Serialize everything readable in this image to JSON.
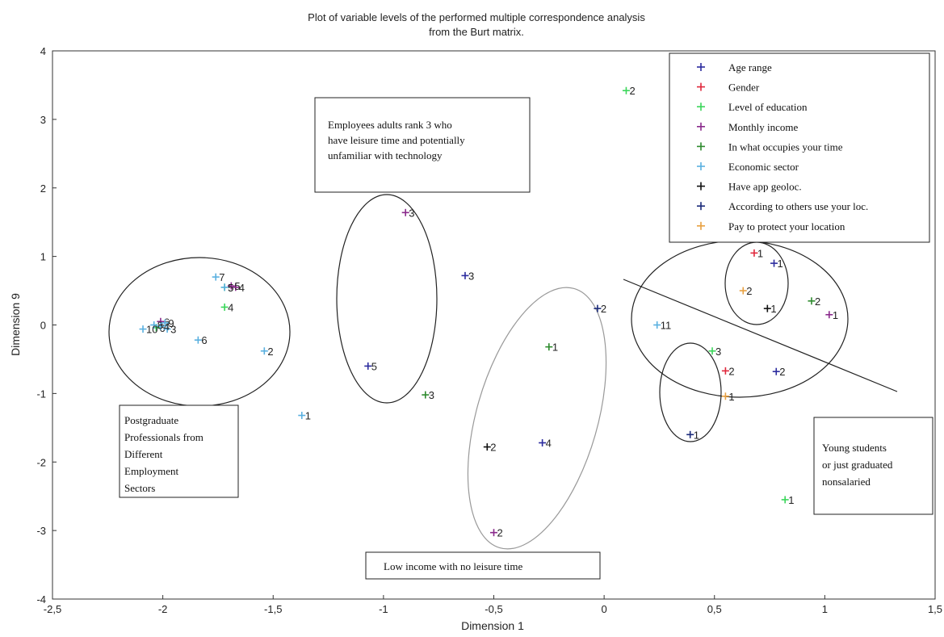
{
  "chart_data": {
    "type": "scatter",
    "title": "Plot of variable levels of the performed multiple correspondence analysis",
    "subtitle": "from the Burt matrix.",
    "xlabel": "Dimension 1",
    "ylabel": "Dimension 9",
    "xlim": [
      -2.5,
      1.5
    ],
    "ylim": [
      -4,
      4
    ],
    "xticks": [
      "-2,5",
      "-2",
      "-1,5",
      "-1",
      "-0,5",
      "0",
      "0,5",
      "1",
      "1,5"
    ],
    "yticks": [
      "4",
      "3",
      "2",
      "1",
      "0",
      "-1",
      "-2",
      "-3",
      "-4"
    ],
    "grid": false,
    "legend_position": "top-right",
    "series": [
      {
        "name": "Age range",
        "color": "#2b2b9e",
        "points": [
          {
            "x": 0.77,
            "y": 0.9,
            "label": "1"
          },
          {
            "x": 0.78,
            "y": -0.68,
            "label": "2"
          },
          {
            "x": -0.63,
            "y": 0.72,
            "label": "3"
          },
          {
            "x": -0.28,
            "y": -1.72,
            "label": "4"
          },
          {
            "x": -1.07,
            "y": -0.6,
            "label": "5"
          }
        ]
      },
      {
        "name": "Gender",
        "color": "#e0283c",
        "points": [
          {
            "x": 0.68,
            "y": 1.05,
            "label": "1"
          },
          {
            "x": 0.55,
            "y": -0.67,
            "label": "2"
          }
        ]
      },
      {
        "name": "Level of education",
        "color": "#3ad65a",
        "points": [
          {
            "x": 0.82,
            "y": -2.55,
            "label": "1"
          },
          {
            "x": 0.1,
            "y": 3.42,
            "label": "2"
          },
          {
            "x": 0.49,
            "y": -0.38,
            "label": "3"
          },
          {
            "x": -1.72,
            "y": 0.26,
            "label": "4"
          },
          {
            "x": -1.72,
            "y": 0.55,
            "label": "5"
          },
          {
            "x": -2.03,
            "y": -0.04,
            "label": "6"
          }
        ]
      },
      {
        "name": "Monthly income",
        "color": "#8a2a8c",
        "points": [
          {
            "x": 1.02,
            "y": 0.15,
            "label": "1"
          },
          {
            "x": -0.5,
            "y": -3.03,
            "label": "2"
          },
          {
            "x": -0.9,
            "y": 1.64,
            "label": "3"
          },
          {
            "x": -1.67,
            "y": 0.55,
            "label": "4"
          },
          {
            "x": -1.69,
            "y": 0.57,
            "label": "5"
          },
          {
            "x": -2.01,
            "y": 0.05,
            "label": "6"
          }
        ]
      },
      {
        "name": "In what occupies your time",
        "color": "#2e8b2e",
        "points": [
          {
            "x": -0.25,
            "y": -0.32,
            "label": "1"
          },
          {
            "x": 0.94,
            "y": 0.35,
            "label": "2"
          },
          {
            "x": -0.81,
            "y": -1.02,
            "label": "3"
          }
        ]
      },
      {
        "name": "Economic sector",
        "color": "#5ab0e0",
        "points": [
          {
            "x": -1.37,
            "y": -1.32,
            "label": "1"
          },
          {
            "x": -1.54,
            "y": -0.38,
            "label": "2"
          },
          {
            "x": -1.98,
            "y": -0.06,
            "label": "3"
          },
          {
            "x": -2.01,
            "y": -0.02,
            "label": "4"
          },
          {
            "x": -1.72,
            "y": 0.55,
            "label": "5"
          },
          {
            "x": -1.84,
            "y": -0.22,
            "label": "6"
          },
          {
            "x": -1.76,
            "y": 0.7,
            "label": "7"
          },
          {
            "x": -2.04,
            "y": 0.0,
            "label": "8"
          },
          {
            "x": -1.99,
            "y": 0.03,
            "label": "9"
          },
          {
            "x": -2.09,
            "y": -0.06,
            "label": "10"
          },
          {
            "x": 0.24,
            "y": 0.0,
            "label": "11"
          }
        ]
      },
      {
        "name": "Have app geoloc.",
        "color": "#111111",
        "points": [
          {
            "x": 0.74,
            "y": 0.24,
            "label": "1"
          },
          {
            "x": -0.53,
            "y": -1.78,
            "label": "2"
          }
        ]
      },
      {
        "name": "According to others use your loc.",
        "color": "#1a2a7a",
        "points": [
          {
            "x": 0.39,
            "y": -1.6,
            "label": "1"
          },
          {
            "x": -0.03,
            "y": 0.24,
            "label": "2"
          }
        ]
      },
      {
        "name": "Pay to protect your location",
        "color": "#e8a040",
        "points": [
          {
            "x": 0.55,
            "y": -1.04,
            "label": "1"
          },
          {
            "x": 0.63,
            "y": 0.5,
            "label": "2"
          }
        ]
      }
    ]
  },
  "annotations": {
    "employees": [
      "Employees adults rank 3 who",
      "have leisure time and potentially",
      "unfamiliar with technology"
    ],
    "postgraduate": [
      "Postgraduate",
      "Professionals from",
      "Different",
      "Employment",
      "Sectors"
    ],
    "low_income": [
      "Low income with no leisure time"
    ],
    "young": [
      "Young students",
      "or just graduated",
      "nonsalaried"
    ]
  }
}
